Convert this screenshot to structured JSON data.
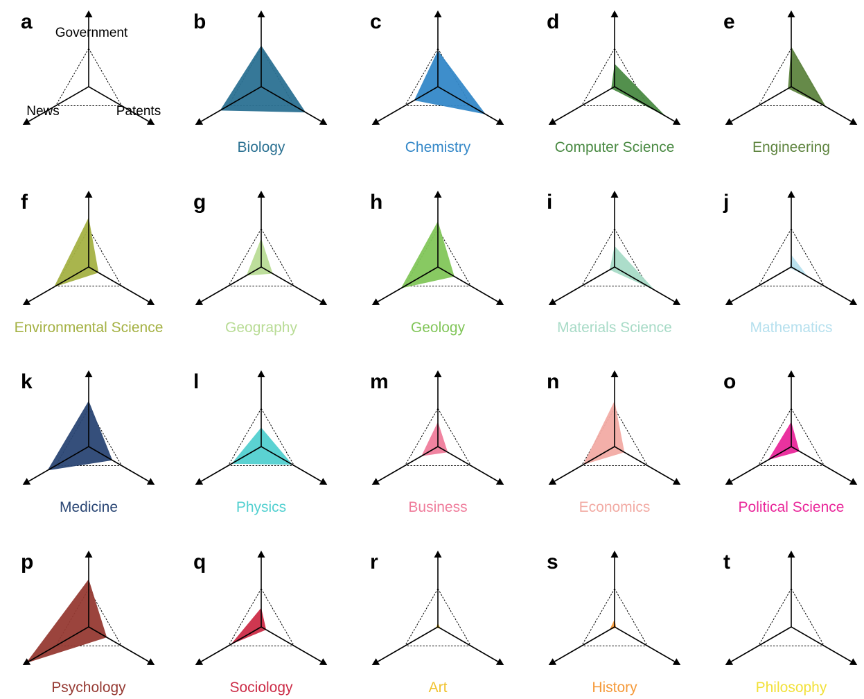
{
  "chart_data": {
    "type": "radar",
    "layout": {
      "rows": 4,
      "columns": 5
    },
    "axes": [
      "Government",
      "Patents",
      "News"
    ],
    "reference_level": 1.0,
    "panels": [
      {
        "letter": "a",
        "title": "",
        "color": "",
        "values": null,
        "axis_labels": [
          "Government",
          "Patents",
          "News"
        ]
      },
      {
        "letter": "b",
        "title": "Biology",
        "color": "#2b7192",
        "values": {
          "Government": 1.08,
          "Patents": 1.35,
          "News": 1.25
        }
      },
      {
        "letter": "c",
        "title": "Chemistry",
        "color": "#3488c8",
        "values": {
          "Government": 0.95,
          "Patents": 1.45,
          "News": 0.72
        }
      },
      {
        "letter": "d",
        "title": "Computer Science",
        "color": "#4a8a43",
        "values": {
          "Government": 0.6,
          "Patents": 1.55,
          "News": 0.1
        }
      },
      {
        "letter": "e",
        "title": "Engineering",
        "color": "#5e843f",
        "values": {
          "Government": 1.05,
          "Patents": 1.05,
          "News": 0.1
        }
      },
      {
        "letter": "f",
        "title": "Environmental Science",
        "color": "#a4b143",
        "values": {
          "Government": 1.3,
          "Patents": 0.3,
          "News": 1.05
        }
      },
      {
        "letter": "g",
        "title": "Geography",
        "color": "#b9dc96",
        "values": {
          "Government": 0.75,
          "Patents": 0.35,
          "News": 0.45
        }
      },
      {
        "letter": "h",
        "title": "Geology",
        "color": "#82c65a",
        "values": {
          "Government": 1.2,
          "Patents": 0.5,
          "News": 1.12
        }
      },
      {
        "letter": "i",
        "title": "Materials Science",
        "color": "#a8dbc7",
        "values": {
          "Government": 0.55,
          "Patents": 1.22,
          "News": 0.15
        }
      },
      {
        "letter": "j",
        "title": "Mathematics",
        "color": "#b6e0ee",
        "values": {
          "Government": 0.32,
          "Patents": 0.5,
          "News": 0.05
        }
      },
      {
        "letter": "k",
        "title": "Medicine",
        "color": "#2a4674",
        "values": {
          "Government": 1.2,
          "Patents": 0.72,
          "News": 1.25
        }
      },
      {
        "letter": "l",
        "title": "Physics",
        "color": "#52d0d0",
        "values": {
          "Government": 0.5,
          "Patents": 0.95,
          "News": 0.9
        }
      },
      {
        "letter": "m",
        "title": "Business",
        "color": "#ef7c9b",
        "values": {
          "Government": 0.65,
          "Patents": 0.3,
          "News": 0.5
        }
      },
      {
        "letter": "n",
        "title": "Economics",
        "color": "#f2aba4",
        "values": {
          "Government": 1.2,
          "Patents": 0.3,
          "News": 0.95
        }
      },
      {
        "letter": "o",
        "title": "Political Science",
        "color": "#e9279a",
        "values": {
          "Government": 0.65,
          "Patents": 0.25,
          "News": 0.7
        }
      },
      {
        "letter": "p",
        "title": "Psychology",
        "color": "#963a33",
        "values": {
          "Government": 1.25,
          "Patents": 0.55,
          "News": 1.9
        }
      },
      {
        "letter": "q",
        "title": "Sociology",
        "color": "#cc2c47",
        "values": {
          "Government": 0.5,
          "Patents": 0.15,
          "News": 0.92
        }
      },
      {
        "letter": "r",
        "title": "Art",
        "color": "#f0c22e",
        "values": {
          "Government": 0.1,
          "Patents": 0.08,
          "News": 0.06
        }
      },
      {
        "letter": "s",
        "title": "History",
        "color": "#f59a3a",
        "values": {
          "Government": 0.2,
          "Patents": 0.05,
          "News": 0.15
        }
      },
      {
        "letter": "t",
        "title": "Philosophy",
        "color": "#f2e13a",
        "values": {
          "Government": 0.03,
          "Patents": 0.04,
          "News": 0.02
        }
      }
    ]
  }
}
